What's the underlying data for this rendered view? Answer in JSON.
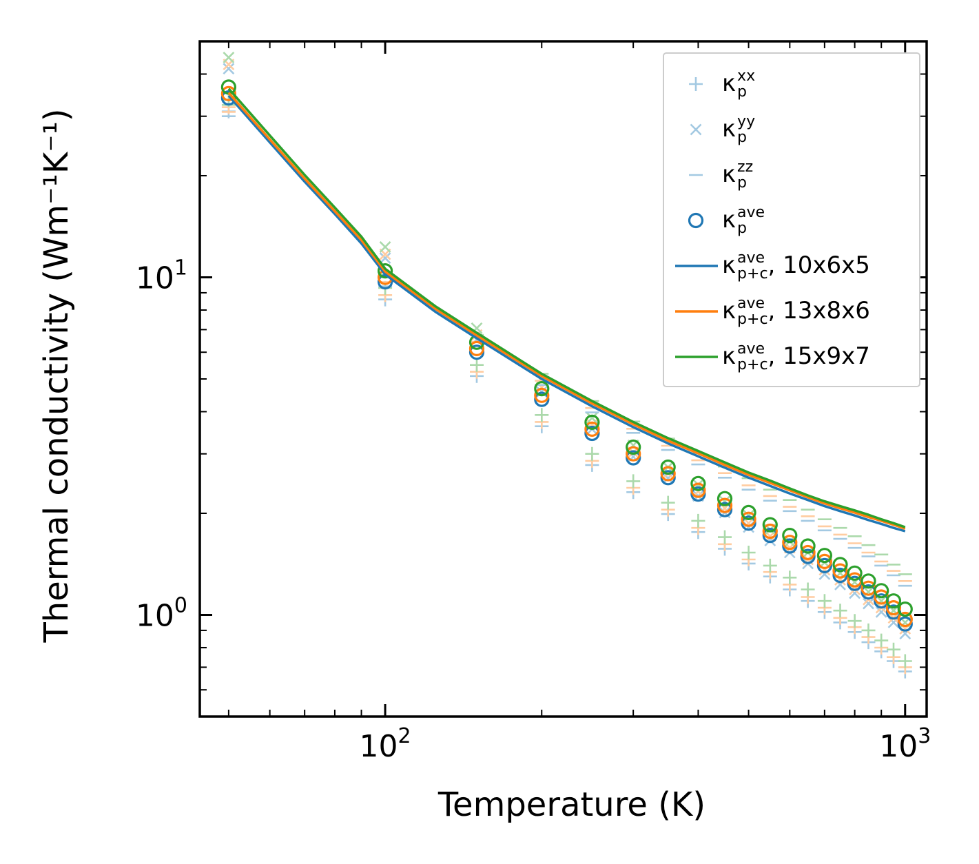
{
  "figure": {
    "background": "#ffffff",
    "frame_color": "#000000"
  },
  "chart_data": {
    "type": "line+scatter",
    "title": "",
    "xlabel": "Temperature (K)",
    "ylabel": "Thermal conductivity (Wm⁻¹K⁻¹)",
    "x_scale": "log",
    "y_scale": "log",
    "xlim": [
      44,
      1100
    ],
    "ylim": [
      0.5,
      50
    ],
    "grid": false,
    "legend_position": "upper right",
    "x_major_ticks": [
      {
        "value": 100,
        "base": "10",
        "exp": "2"
      },
      {
        "value": 1000,
        "base": "10",
        "exp": "3"
      }
    ],
    "y_major_ticks": [
      {
        "value": 1,
        "base": "10",
        "exp": "0"
      },
      {
        "value": 10,
        "base": "10",
        "exp": "1"
      }
    ],
    "x_minor_ticks": [
      50,
      60,
      70,
      80,
      90,
      200,
      300,
      400,
      500,
      600,
      700,
      800,
      900
    ],
    "y_minor_ticks": [
      0.6,
      0.7,
      0.8,
      0.9,
      2,
      3,
      4,
      5,
      6,
      7,
      8,
      9,
      20,
      30,
      40
    ],
    "temperatures": [
      50,
      100,
      150,
      200,
      250,
      300,
      350,
      400,
      450,
      500,
      550,
      600,
      650,
      700,
      750,
      800,
      850,
      900,
      950,
      1000
    ],
    "series": [
      {
        "name": "kappa-p-xx-10x6x5",
        "component": "xx",
        "grid": "10x6x5",
        "type": "scatter",
        "marker": "plus",
        "color": "#a3c9e2",
        "values": [
          31.0,
          8.6,
          5.1,
          3.62,
          2.78,
          2.31,
          1.99,
          1.76,
          1.57,
          1.42,
          1.3,
          1.19,
          1.1,
          1.02,
          0.95,
          0.89,
          0.83,
          0.78,
          0.73,
          0.68
        ]
      },
      {
        "name": "kappa-p-xx-13x8x6",
        "component": "xx",
        "grid": "13x8x6",
        "type": "scatter",
        "marker": "plus",
        "color": "#ffcca0",
        "values": [
          31.9,
          8.86,
          5.25,
          3.73,
          2.86,
          2.38,
          2.05,
          1.81,
          1.62,
          1.46,
          1.34,
          1.23,
          1.13,
          1.05,
          0.98,
          0.92,
          0.86,
          0.8,
          0.75,
          0.7
        ]
      },
      {
        "name": "kappa-p-xx-15x9x7",
        "component": "xx",
        "grid": "15x9x7",
        "type": "scatter",
        "marker": "plus",
        "color": "#abd9ab",
        "values": [
          33.5,
          9.3,
          5.5,
          3.91,
          3.0,
          2.49,
          2.15,
          1.9,
          1.7,
          1.53,
          1.4,
          1.29,
          1.19,
          1.1,
          1.03,
          0.96,
          0.9,
          0.84,
          0.79,
          0.73
        ]
      },
      {
        "name": "kappa-p-yy-10x6x5",
        "component": "yy",
        "grid": "10x6x5",
        "type": "scatter",
        "marker": "x",
        "color": "#a3c9e2",
        "values": [
          41.5,
          11.4,
          6.55,
          4.58,
          3.55,
          2.94,
          2.54,
          2.25,
          2.01,
          1.82,
          1.66,
          1.53,
          1.42,
          1.32,
          1.23,
          1.16,
          1.08,
          1.02,
          0.95,
          0.88
        ]
      },
      {
        "name": "kappa-p-yy-13x8x6",
        "component": "yy",
        "grid": "13x8x6",
        "type": "scatter",
        "marker": "x",
        "color": "#ffcca0",
        "values": [
          42.7,
          11.7,
          6.75,
          4.72,
          3.66,
          3.03,
          2.62,
          2.32,
          2.07,
          1.87,
          1.71,
          1.58,
          1.46,
          1.36,
          1.27,
          1.19,
          1.11,
          1.05,
          0.98,
          0.91
        ]
      },
      {
        "name": "kappa-p-yy-15x9x7",
        "component": "yy",
        "grid": "15x9x7",
        "type": "scatter",
        "marker": "x",
        "color": "#abd9ab",
        "values": [
          44.8,
          12.3,
          7.07,
          4.95,
          3.83,
          3.18,
          2.74,
          2.43,
          2.17,
          1.97,
          1.79,
          1.65,
          1.53,
          1.43,
          1.33,
          1.25,
          1.17,
          1.1,
          1.03,
          0.95
        ]
      },
      {
        "name": "kappa-p-zz-10x6x5",
        "component": "zz",
        "grid": "10x6x5",
        "type": "scatter",
        "marker": "dash",
        "color": "#a3c9e2",
        "values": [
          30.0,
          9.4,
          6.25,
          4.8,
          3.98,
          3.46,
          3.08,
          2.79,
          2.55,
          2.35,
          2.18,
          2.03,
          1.9,
          1.78,
          1.68,
          1.58,
          1.49,
          1.4,
          1.31,
          1.22
        ]
      },
      {
        "name": "kappa-p-zz-13x8x6",
        "component": "zz",
        "grid": "13x8x6",
        "type": "scatter",
        "marker": "dash",
        "color": "#ffcca0",
        "values": [
          30.9,
          9.68,
          6.44,
          4.94,
          4.1,
          3.56,
          3.17,
          2.87,
          2.63,
          2.42,
          2.25,
          2.09,
          1.96,
          1.83,
          1.73,
          1.63,
          1.53,
          1.44,
          1.35,
          1.26
        ]
      },
      {
        "name": "kappa-p-zz-15x9x7",
        "component": "zz",
        "grid": "15x9x7",
        "type": "scatter",
        "marker": "dash",
        "color": "#abd9ab",
        "values": [
          32.4,
          10.2,
          6.75,
          5.18,
          4.3,
          3.74,
          3.33,
          3.01,
          2.75,
          2.54,
          2.35,
          2.19,
          2.05,
          1.92,
          1.81,
          1.71,
          1.61,
          1.51,
          1.41,
          1.32
        ]
      },
      {
        "name": "kappa-p-ave-10x6x5",
        "component": "ave",
        "grid": "10x6x5",
        "type": "scatter",
        "marker": "circle",
        "color": "#1f77b4",
        "values": [
          34.0,
          9.7,
          6.0,
          4.35,
          3.45,
          2.92,
          2.55,
          2.28,
          2.05,
          1.87,
          1.72,
          1.6,
          1.49,
          1.4,
          1.31,
          1.24,
          1.17,
          1.1,
          1.02,
          0.94
        ]
      },
      {
        "name": "kappa-p-ave-13x8x6",
        "component": "ave",
        "grid": "13x8x6",
        "type": "scatter",
        "marker": "circle",
        "color": "#ff7f0e",
        "values": [
          35.0,
          10.0,
          6.15,
          4.47,
          3.55,
          3.0,
          2.62,
          2.34,
          2.11,
          1.92,
          1.77,
          1.64,
          1.53,
          1.44,
          1.35,
          1.27,
          1.2,
          1.13,
          1.05,
          0.97
        ]
      },
      {
        "name": "kappa-p-ave-15x9x7",
        "component": "ave",
        "grid": "15x9x7",
        "type": "scatter",
        "marker": "circle",
        "color": "#2ca02c",
        "values": [
          36.6,
          10.45,
          6.42,
          4.68,
          3.72,
          3.14,
          2.74,
          2.45,
          2.21,
          2.01,
          1.85,
          1.72,
          1.6,
          1.5,
          1.41,
          1.33,
          1.26,
          1.18,
          1.1,
          1.04
        ]
      },
      {
        "name": "kappa-p-plus-c-ave-10x6x5",
        "component": "ave p+c",
        "grid": "10x6x5",
        "type": "line",
        "marker": "line",
        "color": "#1f77b4",
        "x": [
          50,
          60,
          70,
          80,
          90,
          100,
          125,
          150,
          200,
          250,
          300,
          350,
          400,
          450,
          500,
          550,
          600,
          650,
          700,
          750,
          800,
          850,
          900,
          950,
          1000
        ],
        "values": [
          34.5,
          25.1,
          19.2,
          15.4,
          12.6,
          10.2,
          7.9,
          6.6,
          5.0,
          4.15,
          3.6,
          3.22,
          2.95,
          2.73,
          2.55,
          2.41,
          2.29,
          2.19,
          2.1,
          2.03,
          1.97,
          1.91,
          1.86,
          1.81,
          1.77
        ]
      },
      {
        "name": "kappa-p-plus-c-ave-13x8x6",
        "component": "ave p+c",
        "grid": "13x8x6",
        "type": "line",
        "marker": "line",
        "color": "#ff7f0e",
        "x": [
          50,
          60,
          70,
          80,
          90,
          100,
          125,
          150,
          200,
          250,
          300,
          350,
          400,
          450,
          500,
          550,
          600,
          650,
          700,
          750,
          800,
          850,
          900,
          950,
          1000
        ],
        "values": [
          35.2,
          25.6,
          19.6,
          15.7,
          12.9,
          10.4,
          8.06,
          6.73,
          5.1,
          4.23,
          3.67,
          3.28,
          3.01,
          2.78,
          2.6,
          2.46,
          2.34,
          2.23,
          2.14,
          2.07,
          2.01,
          1.95,
          1.9,
          1.85,
          1.8
        ]
      },
      {
        "name": "kappa-p-plus-c-ave-15x9x7",
        "component": "ave p+c",
        "grid": "15x9x7",
        "type": "line",
        "marker": "line",
        "color": "#2ca02c",
        "x": [
          50,
          60,
          70,
          80,
          90,
          100,
          125,
          150,
          200,
          250,
          300,
          350,
          400,
          450,
          500,
          550,
          600,
          650,
          700,
          750,
          800,
          850,
          900,
          950,
          1000
        ],
        "values": [
          36.2,
          26.3,
          20.1,
          16.1,
          13.2,
          10.6,
          8.2,
          6.85,
          5.18,
          4.3,
          3.73,
          3.34,
          3.06,
          2.83,
          2.64,
          2.5,
          2.37,
          2.26,
          2.17,
          2.1,
          2.04,
          1.98,
          1.92,
          1.87,
          1.82
        ]
      }
    ]
  },
  "legend": {
    "entries": [
      {
        "marker": "plus",
        "color": "#a3c9e2",
        "kappa": "κ",
        "sup": "xx",
        "sub": "p",
        "suffix": ""
      },
      {
        "marker": "x",
        "color": "#a3c9e2",
        "kappa": "κ",
        "sup": "yy",
        "sub": "p",
        "suffix": ""
      },
      {
        "marker": "dash",
        "color": "#a3c9e2",
        "kappa": "κ",
        "sup": "zz",
        "sub": "p",
        "suffix": ""
      },
      {
        "marker": "circle",
        "color": "#1f77b4",
        "kappa": "κ",
        "sup": "ave",
        "sub": "p",
        "suffix": ""
      },
      {
        "marker": "line",
        "color": "#1f77b4",
        "kappa": "κ",
        "sup": "ave",
        "sub": "p+c",
        "suffix": ", 10x6x5"
      },
      {
        "marker": "line",
        "color": "#ff7f0e",
        "kappa": "κ",
        "sup": "ave",
        "sub": "p+c",
        "suffix": ", 13x8x6"
      },
      {
        "marker": "line",
        "color": "#2ca02c",
        "kappa": "κ",
        "sup": "ave",
        "sub": "p+c",
        "suffix": ", 15x9x7"
      }
    ]
  },
  "colors": {
    "blue": "#1f77b4",
    "orange": "#ff7f0e",
    "green": "#2ca02c",
    "light_blue": "#a3c9e2",
    "light_orange": "#ffcca0",
    "light_green": "#abd9ab",
    "axis": "#000000",
    "legend_border": "#cccccc"
  }
}
